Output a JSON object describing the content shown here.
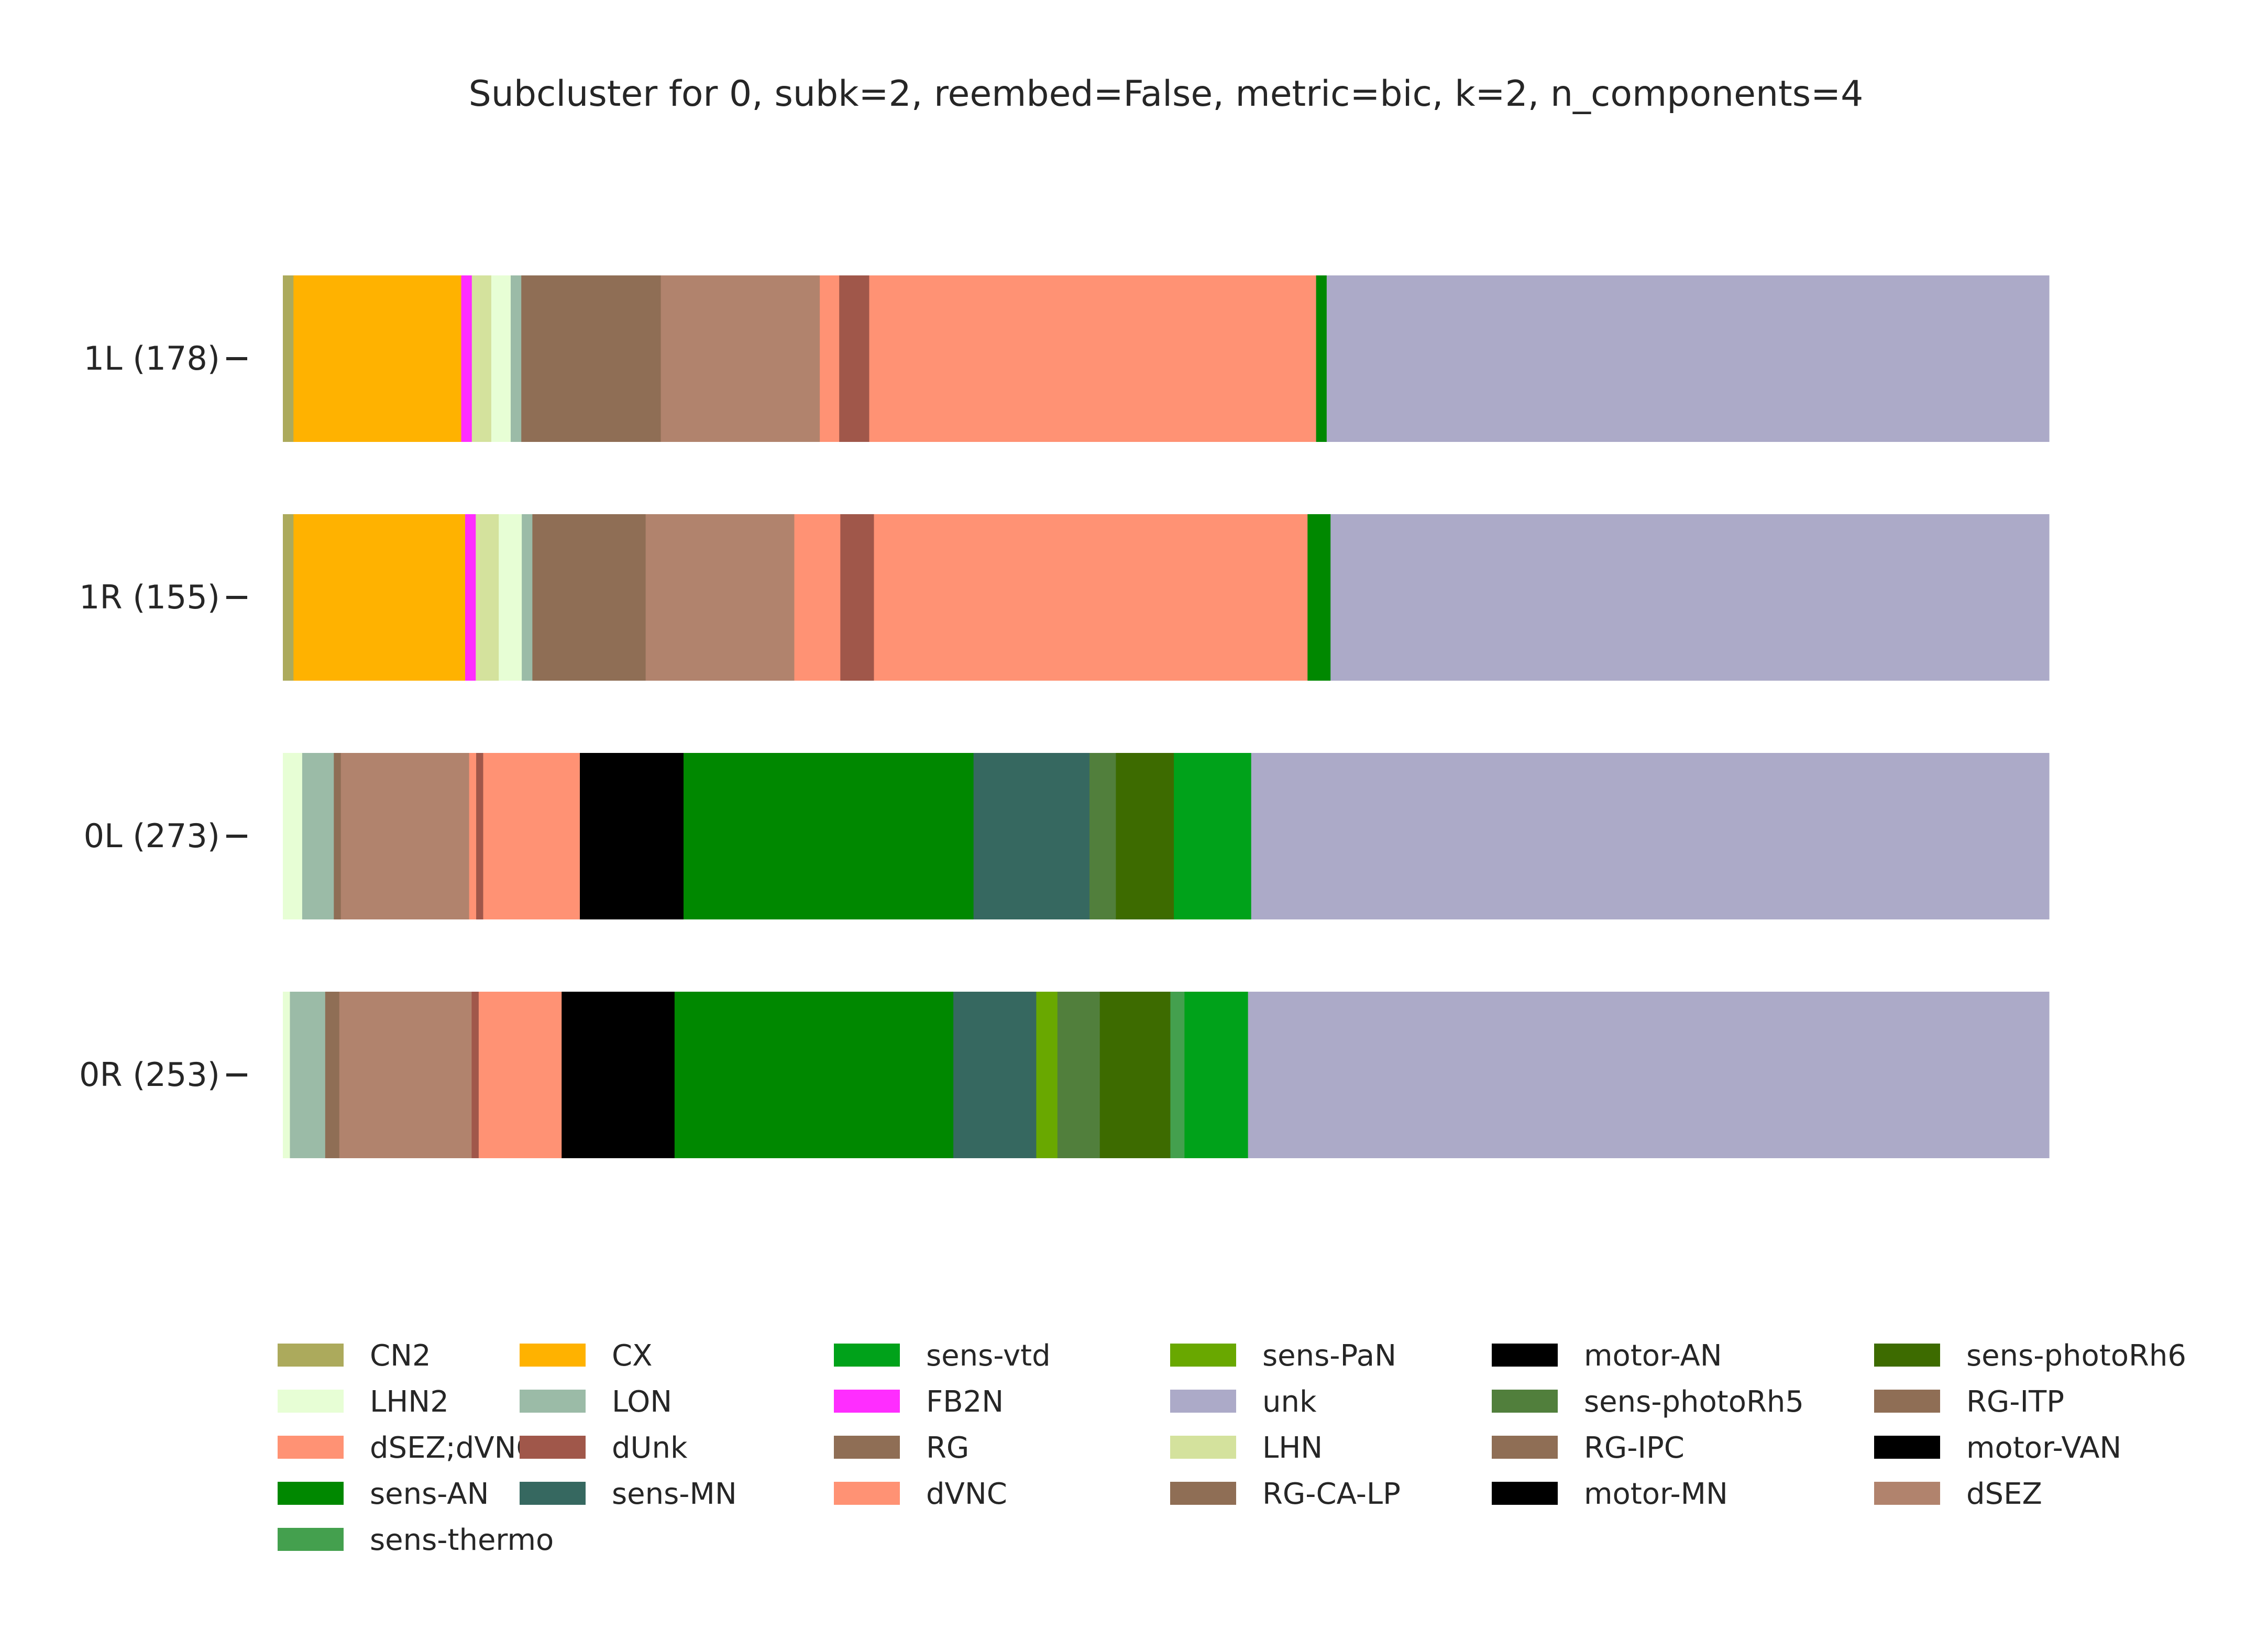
{
  "chart_data": {
    "type": "bar",
    "orientation": "horizontal",
    "stacked": true,
    "normalized": true,
    "title": "Subcluster for 0, subk=2, reembed=False, metric=bic, k=2, n_components=4",
    "xlabel": "",
    "ylabel": "",
    "grid": false,
    "legend_position": "bottom",
    "categories": [
      "1L (178)",
      "1R (155)",
      "0L (273)",
      "0R (253)"
    ],
    "legend": [
      {
        "name": "CN2",
        "color": "#acaa5c"
      },
      {
        "name": "LHN2",
        "color": "#e7fed5"
      },
      {
        "name": "dSEZ;dVNC",
        "color": "#ff9274"
      },
      {
        "name": "sens-AN",
        "color": "#008800"
      },
      {
        "name": "sens-thermo",
        "color": "#44a04e"
      },
      {
        "name": "CX",
        "color": "#ffb200"
      },
      {
        "name": "LON",
        "color": "#9bbba7"
      },
      {
        "name": "dUnk",
        "color": "#a0574a"
      },
      {
        "name": "sens-MN",
        "color": "#366860"
      },
      {
        "name": "sens-vtd",
        "color": "#00a21a"
      },
      {
        "name": "FB2N",
        "color": "#ff2dff"
      },
      {
        "name": "RG",
        "color": "#8f6e55"
      },
      {
        "name": "dVNC",
        "color": "#ff9274"
      },
      {
        "name": "sens-PaN",
        "color": "#69a800"
      },
      {
        "name": "unk",
        "color": "#acaac8"
      },
      {
        "name": "LHN",
        "color": "#d4e29d"
      },
      {
        "name": "RG-CA-LP",
        "color": "#8f6e55"
      },
      {
        "name": "motor-AN",
        "color": "#000000"
      },
      {
        "name": "sens-photoRh5",
        "color": "#517f3c"
      },
      {
        "name": "RG-IPC",
        "color": "#8f6e55"
      },
      {
        "name": "motor-MN",
        "color": "#000000"
      },
      {
        "name": "sens-photoRh6",
        "color": "#3d6b00"
      },
      {
        "name": "RG-ITP",
        "color": "#8f6e55"
      },
      {
        "name": "motor-VAN",
        "color": "#000000"
      },
      {
        "name": "dSEZ",
        "color": "#b1836d"
      }
    ],
    "series": [
      {
        "name": "CN2",
        "color": "#acaa5c",
        "values": [
          0.006,
          0.006,
          0.0,
          0.0
        ]
      },
      {
        "name": "CX",
        "color": "#ffb200",
        "values": [
          0.095,
          0.097,
          0.0,
          0.0
        ]
      },
      {
        "name": "FB2N",
        "color": "#ff2dff",
        "values": [
          0.006,
          0.006,
          0.0,
          0.0
        ]
      },
      {
        "name": "LHN",
        "color": "#d4e29d",
        "values": [
          0.011,
          0.013,
          0.0,
          0.0
        ]
      },
      {
        "name": "LHN2",
        "color": "#e7fed5",
        "values": [
          0.011,
          0.013,
          0.011,
          0.004
        ]
      },
      {
        "name": "LON",
        "color": "#9bbba7",
        "values": [
          0.006,
          0.006,
          0.018,
          0.02
        ]
      },
      {
        "name": "RG",
        "color": "#8f6e55",
        "values": [
          0.0,
          0.0,
          0.0,
          0.008
        ]
      },
      {
        "name": "RG-CA-LP",
        "color": "#8f6e55",
        "values": [
          0.0,
          0.0,
          0.0,
          0.0
        ]
      },
      {
        "name": "RG-IPC",
        "color": "#8f6e55",
        "values": [
          0.0,
          0.0,
          0.0,
          0.0
        ]
      },
      {
        "name": "RG-ITP",
        "color": "#8f6e55",
        "values": [
          0.079,
          0.064,
          0.004,
          0.0
        ]
      },
      {
        "name": "dSEZ",
        "color": "#b1836d",
        "values": [
          0.09,
          0.084,
          0.073,
          0.075
        ]
      },
      {
        "name": "dSEZ;dVNC",
        "color": "#ff9274",
        "values": [
          0.011,
          0.026,
          0.004,
          0.0
        ]
      },
      {
        "name": "dUnk",
        "color": "#a0574a",
        "values": [
          0.017,
          0.019,
          0.004,
          0.004
        ]
      },
      {
        "name": "dVNC",
        "color": "#ff9274",
        "values": [
          0.253,
          0.245,
          0.055,
          0.047
        ]
      },
      {
        "name": "motor-AN",
        "color": "#000000",
        "values": [
          0.0,
          0.0,
          0.026,
          0.028
        ]
      },
      {
        "name": "motor-MN",
        "color": "#000000",
        "values": [
          0.0,
          0.0,
          0.018,
          0.024
        ]
      },
      {
        "name": "motor-VAN",
        "color": "#000000",
        "values": [
          0.0,
          0.0,
          0.015,
          0.012
        ]
      },
      {
        "name": "sens-AN",
        "color": "#008800",
        "values": [
          0.006,
          0.013,
          0.165,
          0.158
        ]
      },
      {
        "name": "sens-MN",
        "color": "#366860",
        "values": [
          0.0,
          0.0,
          0.066,
          0.047
        ]
      },
      {
        "name": "sens-PaN",
        "color": "#69a800",
        "values": [
          0.0,
          0.0,
          0.0,
          0.012
        ]
      },
      {
        "name": "sens-photoRh5",
        "color": "#517f3c",
        "values": [
          0.0,
          0.0,
          0.015,
          0.024
        ]
      },
      {
        "name": "sens-photoRh6",
        "color": "#3d6b00",
        "values": [
          0.0,
          0.0,
          0.033,
          0.04
        ]
      },
      {
        "name": "sens-thermo",
        "color": "#44a04e",
        "values": [
          0.0,
          0.0,
          0.0,
          0.008
        ]
      },
      {
        "name": "sens-vtd",
        "color": "#00a21a",
        "values": [
          0.0,
          0.0,
          0.044,
          0.036
        ]
      },
      {
        "name": "unk",
        "color": "#acaac8",
        "values": [
          0.409,
          0.406,
          0.454,
          0.454
        ]
      }
    ]
  }
}
